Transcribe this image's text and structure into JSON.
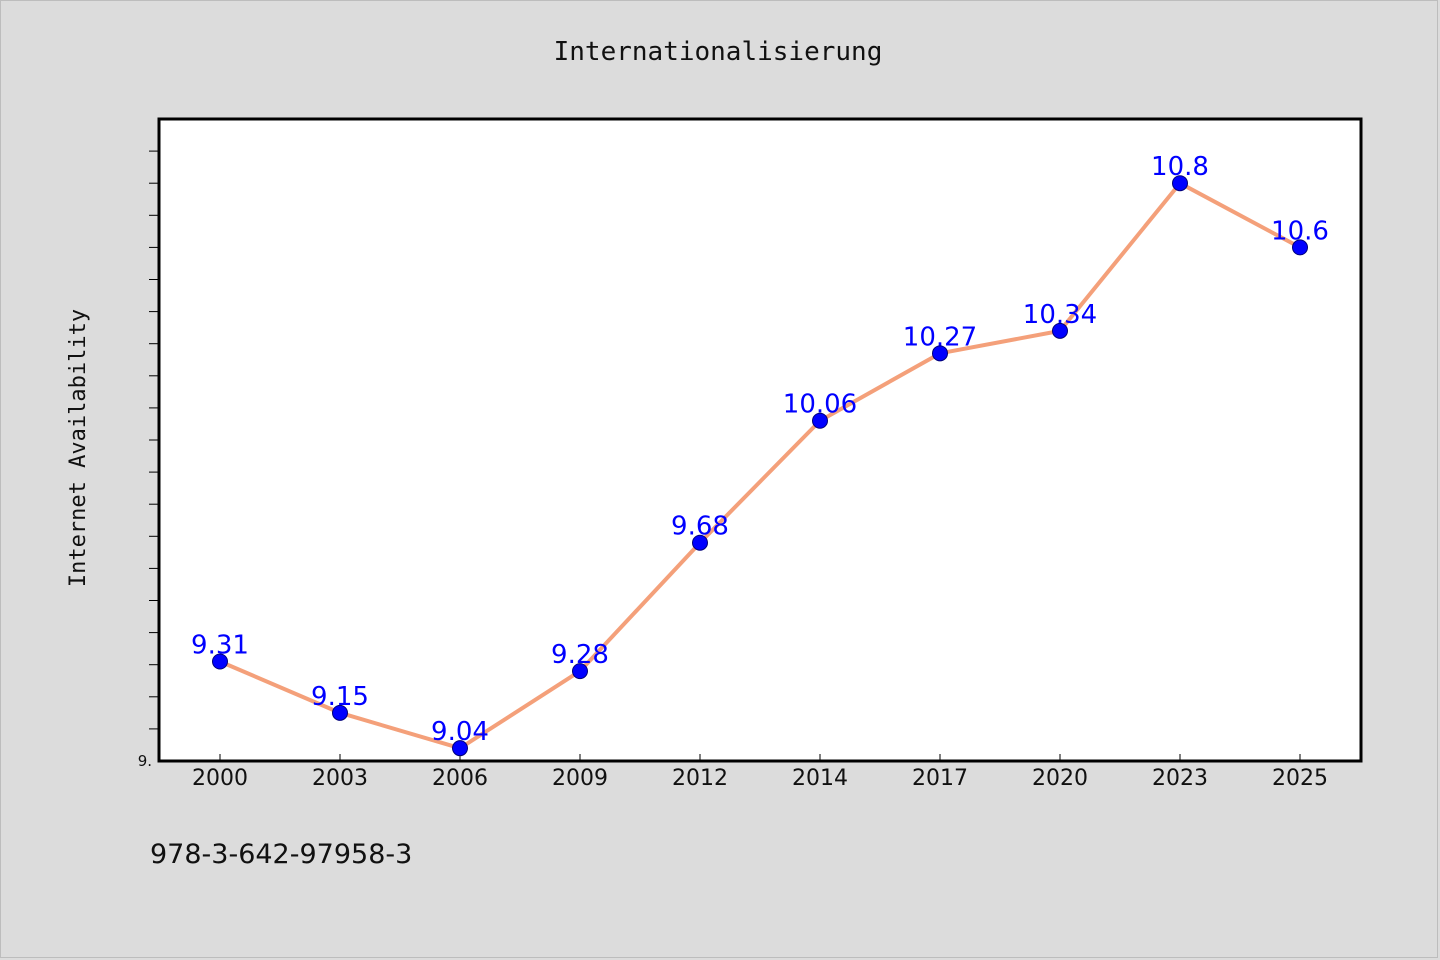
{
  "chart_data": {
    "type": "line",
    "title": "Internationalisierung",
    "xlabel": "",
    "ylabel": "Internet Availability",
    "categories": [
      "2000",
      "2003",
      "2006",
      "2009",
      "2012",
      "2014",
      "2017",
      "2020",
      "2023",
      "2025"
    ],
    "series": [
      {
        "values": [
          9.31,
          9.15,
          9.04,
          9.28,
          9.68,
          10.06,
          10.27,
          10.34,
          10.8,
          10.6
        ]
      }
    ],
    "data_labels": [
      "9.31",
      "9.15",
      "9.04",
      "9.28",
      "9.68",
      "10.06",
      "10.27",
      "10.34",
      "10.8",
      "10.6"
    ],
    "ylim": [
      9.0,
      11.0
    ],
    "ytick_label": "9.",
    "grid": false,
    "legend": "none",
    "colors": {
      "line": "#f4a07a",
      "marker": "#0000ff",
      "data_label": "#0000ff",
      "plot_background": "#ffffff",
      "figure_background": "#dcdcdc"
    }
  },
  "footer": {
    "text": "978-3-642-97958-3"
  }
}
